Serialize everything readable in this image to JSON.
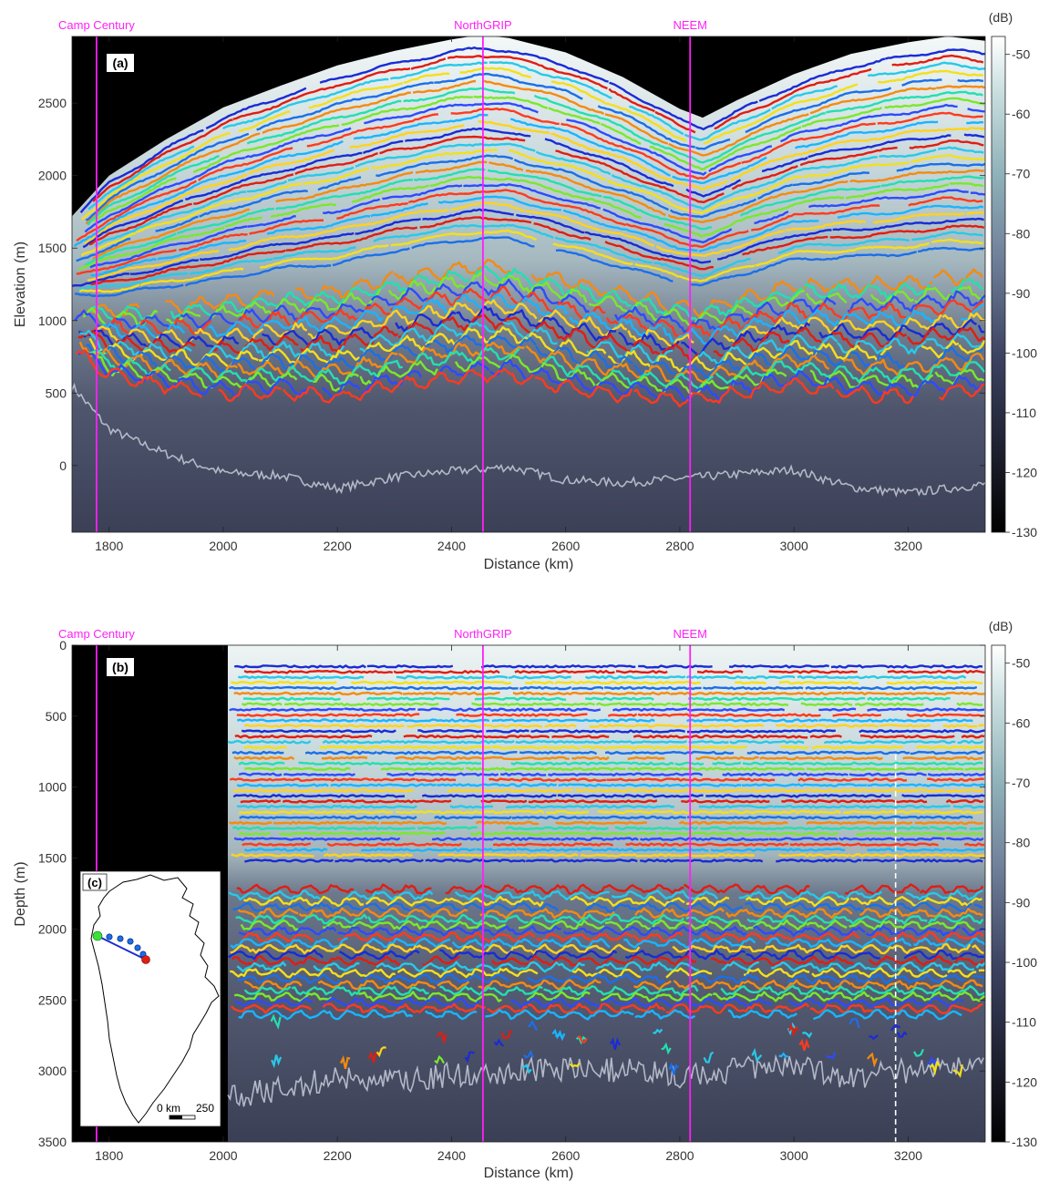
{
  "chart_data": [
    {
      "type": "heatmap",
      "panel_label": "(a)",
      "xlabel": "Distance (km)",
      "ylabel": "Elevation (m)",
      "xlim": [
        1735,
        3335
      ],
      "ylim": [
        -460,
        2960
      ],
      "x_ticks": [
        1800,
        2000,
        2200,
        2400,
        2600,
        2800,
        3000,
        3200
      ],
      "y_ticks": [
        0,
        500,
        1000,
        1500,
        2000,
        2500
      ],
      "y_reversed": false,
      "colorbar": {
        "unit": "(dB)",
        "ticks": [
          -50,
          -60,
          -70,
          -80,
          -90,
          -100,
          -110,
          -120,
          -130
        ],
        "range": [
          -130,
          -47
        ]
      },
      "site_markers": [
        {
          "label": "Camp Century",
          "x": 1778
        },
        {
          "label": "NorthGRIP",
          "x": 2455
        },
        {
          "label": "NEEM",
          "x": 2818
        }
      ],
      "surface_profile": {
        "x": [
          1735,
          1800,
          1900,
          2000,
          2100,
          2200,
          2300,
          2400,
          2450,
          2500,
          2600,
          2700,
          2800,
          2840,
          2900,
          3000,
          3100,
          3200,
          3270,
          3335
        ],
        "y": [
          1720,
          2000,
          2250,
          2470,
          2620,
          2760,
          2860,
          2940,
          2970,
          2950,
          2850,
          2680,
          2460,
          2400,
          2520,
          2700,
          2840,
          2920,
          2960,
          2930
        ]
      },
      "bed_profile": {
        "x": [
          1735,
          1800,
          1900,
          2000,
          2100,
          2200,
          2300,
          2400,
          2500,
          2600,
          2700,
          2800,
          2900,
          3000,
          3100,
          3200,
          3335
        ],
        "y": [
          550,
          250,
          80,
          -50,
          -70,
          -160,
          -80,
          -40,
          -10,
          -100,
          -120,
          -90,
          -60,
          -30,
          -150,
          -190,
          -130
        ]
      },
      "layer_colors": [
        "#1a2bd6",
        "#e11d12",
        "#28c9e8",
        "#f3e01a",
        "#1b6fe8",
        "#f58a10",
        "#22e0b0",
        "#7ae82c",
        "#2d4bff",
        "#ff3a1e",
        "#19b5ff",
        "#ffd21c"
      ]
    },
    {
      "type": "heatmap",
      "panel_label": "(b)",
      "inset_label": "(c)",
      "xlabel": "Distance (km)",
      "ylabel": "Depth (m)",
      "xlim": [
        1735,
        3335
      ],
      "ylim": [
        0,
        3500
      ],
      "x_ticks": [
        1800,
        2000,
        2200,
        2400,
        2600,
        2800,
        3000,
        3200
      ],
      "y_ticks": [
        0,
        500,
        1000,
        1500,
        2000,
        2500,
        3000,
        3500
      ],
      "y_reversed": true,
      "data_start_x": 2008,
      "dashed_line_x": 3178,
      "colorbar": {
        "unit": "(dB)",
        "ticks": [
          -50,
          -60,
          -70,
          -80,
          -90,
          -100,
          -110,
          -120,
          -130
        ],
        "range": [
          -130,
          -47
        ]
      },
      "site_markers": [
        {
          "label": "Camp Century",
          "x": 1778
        },
        {
          "label": "NorthGRIP",
          "x": 2455
        },
        {
          "label": "NEEM",
          "x": 2818
        }
      ],
      "bed_depth_profile": {
        "x": [
          2008,
          2100,
          2200,
          2300,
          2400,
          2500,
          2600,
          2700,
          2800,
          2900,
          3000,
          3100,
          3200,
          3335
        ],
        "y": [
          3200,
          3120,
          3050,
          3080,
          3020,
          3010,
          2980,
          3000,
          3040,
          2990,
          2960,
          3050,
          3000,
          2920
        ]
      },
      "scale_bar": {
        "start_label": "0 km",
        "end_label": "250"
      }
    }
  ]
}
